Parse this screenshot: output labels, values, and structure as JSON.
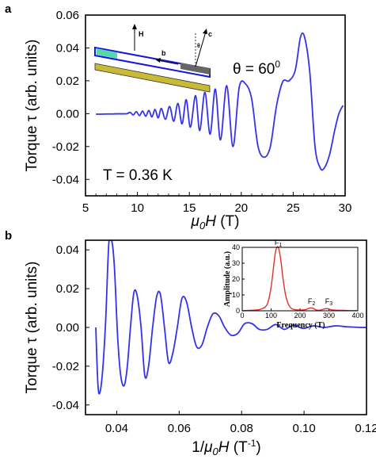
{
  "chart_data": [
    {
      "panel": "a",
      "type": "line",
      "xlabel": "μ0H (T)",
      "ylabel": "Torque τ (arb. units)",
      "xlim": [
        5,
        30
      ],
      "ylim": [
        -0.05,
        0.06
      ],
      "xticks": [
        5,
        10,
        15,
        20,
        25,
        30
      ],
      "yticks": [
        -0.04,
        -0.02,
        0.0,
        0.02,
        0.04,
        0.06
      ],
      "ytick_labels": [
        "-0.04",
        "-0.02",
        "0.00",
        "0.02",
        "0.04",
        "0.06"
      ],
      "series_color": "#3333ee",
      "annotations": {
        "theta": "θ = 60",
        "theta_sup": "0",
        "temperature": "T = 0.36 K"
      },
      "schematic_labels": {
        "H": "H",
        "b": "b",
        "c": "c",
        "theta": "θ"
      },
      "series": [
        {
          "x": [
            6.0,
            6.5,
            7.0,
            7.5,
            8.0,
            8.5,
            9.0,
            9.3,
            9.6,
            9.9,
            10.2,
            10.5,
            10.8,
            11.1,
            11.4,
            11.7,
            12.0,
            12.3,
            12.7,
            13.1,
            13.5,
            13.9,
            14.3,
            14.7,
            15.1,
            15.6,
            16.0,
            16.5,
            17.0,
            17.5,
            18.0,
            18.6,
            19.2,
            19.8,
            20.4,
            21.0,
            21.6,
            22.2,
            22.8,
            23.4,
            24.0,
            24.6,
            25.2,
            25.7,
            26.1,
            26.6,
            27.1,
            27.6,
            28.0,
            28.5,
            29.0,
            29.4,
            29.8
          ],
          "y": [
            -0.0003,
            -0.0003,
            -0.0002,
            -0.0002,
            -0.0001,
            -0.0001,
            0.0,
            0.0008,
            -0.0008,
            0.0012,
            -0.0012,
            0.0016,
            -0.0016,
            0.002,
            -0.002,
            0.0026,
            -0.0026,
            0.0032,
            -0.0034,
            0.0044,
            -0.0046,
            0.0062,
            -0.0062,
            0.0085,
            -0.0082,
            0.011,
            -0.0103,
            0.013,
            -0.0125,
            0.015,
            -0.016,
            0.017,
            -0.02,
            0.016,
            0.0182,
            0.009,
            -0.0195,
            -0.0265,
            -0.02,
            0.005,
            0.0195,
            0.02,
            0.0265,
            0.0465,
            0.0465,
            0.025,
            -0.02,
            -0.033,
            -0.033,
            -0.025,
            -0.01,
            0.0,
            0.005
          ]
        }
      ]
    },
    {
      "panel": "b",
      "type": "line",
      "xlabel": "1/μ0H (T-1)",
      "ylabel": "Torque τ (arb. units)",
      "xlim": [
        0.03,
        0.12
      ],
      "ylim": [
        -0.045,
        0.045
      ],
      "xticks": [
        0.04,
        0.06,
        0.08,
        0.1,
        0.12
      ],
      "xtick_labels": [
        "0.04",
        "0.06",
        "0.08",
        "0.10",
        "0.12"
      ],
      "yticks": [
        -0.04,
        -0.02,
        0.0,
        0.02,
        0.04
      ],
      "ytick_labels": [
        "-0.04",
        "-0.02",
        "0.00",
        "0.02",
        "0.04"
      ],
      "series_color": "#3333ee",
      "series": [
        {
          "x": [
            0.0333,
            0.034,
            0.0347,
            0.0356,
            0.0365,
            0.0375,
            0.0385,
            0.0393,
            0.0403,
            0.0413,
            0.0424,
            0.0434,
            0.0444,
            0.0455,
            0.0466,
            0.0478,
            0.049,
            0.0502,
            0.0515,
            0.0528,
            0.054,
            0.0553,
            0.0566,
            0.058,
            0.0594,
            0.0609,
            0.0624,
            0.064,
            0.0656,
            0.0673,
            0.069,
            0.0708,
            0.0727,
            0.0746,
            0.0766,
            0.0788,
            0.081,
            0.0833,
            0.0857,
            0.0882,
            0.0909,
            0.0937,
            0.0966,
            0.0997,
            0.103,
            0.1065,
            0.11,
            0.114,
            0.118,
            0.12
          ],
          "y": [
            0.0,
            -0.03,
            -0.033,
            -0.02,
            0.005,
            0.044,
            0.044,
            0.03,
            -0.005,
            -0.025,
            -0.03,
            -0.02,
            0.0,
            0.018,
            0.016,
            0.0,
            -0.025,
            -0.02,
            0.0,
            0.016,
            0.017,
            0.0,
            -0.018,
            -0.013,
            0.0,
            0.015,
            0.013,
            0.0,
            -0.01,
            -0.009,
            0.0,
            0.007,
            0.006,
            0.0,
            -0.004,
            -0.003,
            0.002,
            0.002,
            -0.001,
            -0.001,
            0.0015,
            -0.001,
            0.0012,
            -0.0005,
            0.0008,
            0.0,
            0.0008,
            0.0003,
            0.0,
            0.0
          ]
        }
      ],
      "inset": {
        "type": "line",
        "xlabel": "Frequency (T)",
        "ylabel": "Amplitude (a.u.)",
        "xlim": [
          0,
          400
        ],
        "ylim": [
          0,
          40
        ],
        "xticks": [
          0,
          100,
          200,
          300,
          400
        ],
        "yticks": [
          0,
          10,
          20,
          30,
          40
        ],
        "series_color": "#e03030",
        "peak_labels": [
          {
            "text": "F",
            "sub": "1",
            "x": 125,
            "y": 40
          },
          {
            "text": "F",
            "sub": "2",
            "x": 240,
            "y": 3
          },
          {
            "text": "F",
            "sub": "3",
            "x": 300,
            "y": 3
          }
        ],
        "x": [
          0,
          20,
          40,
          60,
          80,
          90,
          100,
          110,
          115,
          120,
          125,
          130,
          135,
          140,
          150,
          160,
          170,
          180,
          200,
          220,
          235,
          245,
          255,
          270,
          285,
          295,
          305,
          320,
          340,
          360,
          380,
          400
        ],
        "y": [
          0,
          0.2,
          0.4,
          0.8,
          2.5,
          6,
          15,
          30,
          37,
          40,
          40,
          36,
          30,
          22,
          10,
          4,
          1.5,
          0.8,
          0.5,
          0.8,
          1.8,
          1.6,
          0.6,
          0.4,
          1.2,
          1.4,
          0.8,
          0.4,
          0.3,
          0.2,
          0.1,
          0.1
        ]
      }
    }
  ]
}
